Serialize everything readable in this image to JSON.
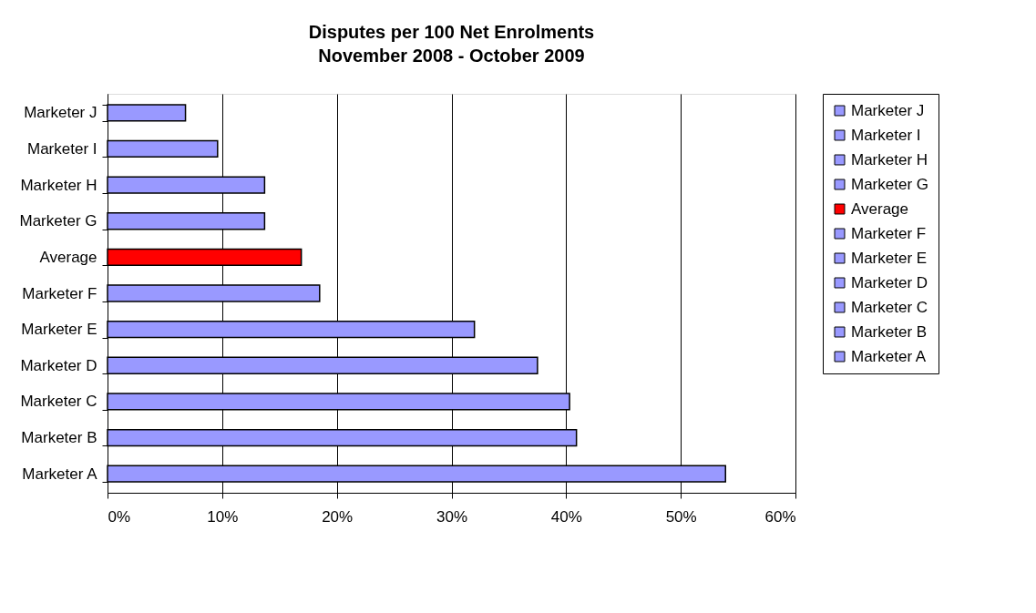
{
  "chart_data": {
    "type": "bar",
    "orientation": "horizontal",
    "title": "Disputes per 100 Net Enrolments",
    "subtitle": "November 2008 - October 2009",
    "categories": [
      "Marketer J",
      "Marketer I",
      "Marketer H",
      "Marketer G",
      "Average",
      "Marketer F",
      "Marketer E",
      "Marketer D",
      "Marketer C",
      "Marketer B",
      "Marketer A"
    ],
    "series": [
      {
        "name": "Marketer J",
        "color": "#9999ff",
        "values": [
          6.8,
          null,
          null,
          null,
          null,
          null,
          null,
          null,
          null,
          null,
          null
        ]
      },
      {
        "name": "Marketer I",
        "color": "#9999ff",
        "values": [
          null,
          9.6,
          null,
          null,
          null,
          null,
          null,
          null,
          null,
          null,
          null
        ]
      },
      {
        "name": "Marketer H",
        "color": "#9999ff",
        "values": [
          null,
          null,
          13.7,
          null,
          null,
          null,
          null,
          null,
          null,
          null,
          null
        ]
      },
      {
        "name": "Marketer G",
        "color": "#9999ff",
        "values": [
          null,
          null,
          null,
          13.7,
          null,
          null,
          null,
          null,
          null,
          null,
          null
        ]
      },
      {
        "name": "Average",
        "color": "#ff0000",
        "values": [
          null,
          null,
          null,
          null,
          16.9,
          null,
          null,
          null,
          null,
          null,
          null
        ]
      },
      {
        "name": "Marketer F",
        "color": "#9999ff",
        "values": [
          null,
          null,
          null,
          null,
          null,
          18.5,
          null,
          null,
          null,
          null,
          null
        ]
      },
      {
        "name": "Marketer E",
        "color": "#9999ff",
        "values": [
          null,
          null,
          null,
          null,
          null,
          null,
          32.0,
          null,
          null,
          null,
          null
        ]
      },
      {
        "name": "Marketer D",
        "color": "#9999ff",
        "values": [
          null,
          null,
          null,
          null,
          null,
          null,
          null,
          37.5,
          null,
          null,
          null
        ]
      },
      {
        "name": "Marketer C",
        "color": "#9999ff",
        "values": [
          null,
          null,
          null,
          null,
          null,
          null,
          null,
          null,
          40.3,
          null,
          null
        ]
      },
      {
        "name": "Marketer B",
        "color": "#9999ff",
        "values": [
          null,
          null,
          null,
          null,
          null,
          null,
          null,
          null,
          null,
          40.9,
          null
        ]
      },
      {
        "name": "Marketer A",
        "color": "#9999ff",
        "values": [
          null,
          null,
          null,
          null,
          null,
          null,
          null,
          null,
          null,
          null,
          53.9
        ]
      }
    ],
    "xlim": [
      0,
      60
    ],
    "xticks": [
      {
        "value": 0,
        "label": "0%"
      },
      {
        "value": 10,
        "label": "10%"
      },
      {
        "value": 20,
        "label": "20%"
      },
      {
        "value": 30,
        "label": "30%"
      },
      {
        "value": 40,
        "label": "40%"
      },
      {
        "value": 50,
        "label": "50%"
      },
      {
        "value": 60,
        "label": "60%"
      }
    ],
    "grid": "x",
    "legend": "right"
  }
}
